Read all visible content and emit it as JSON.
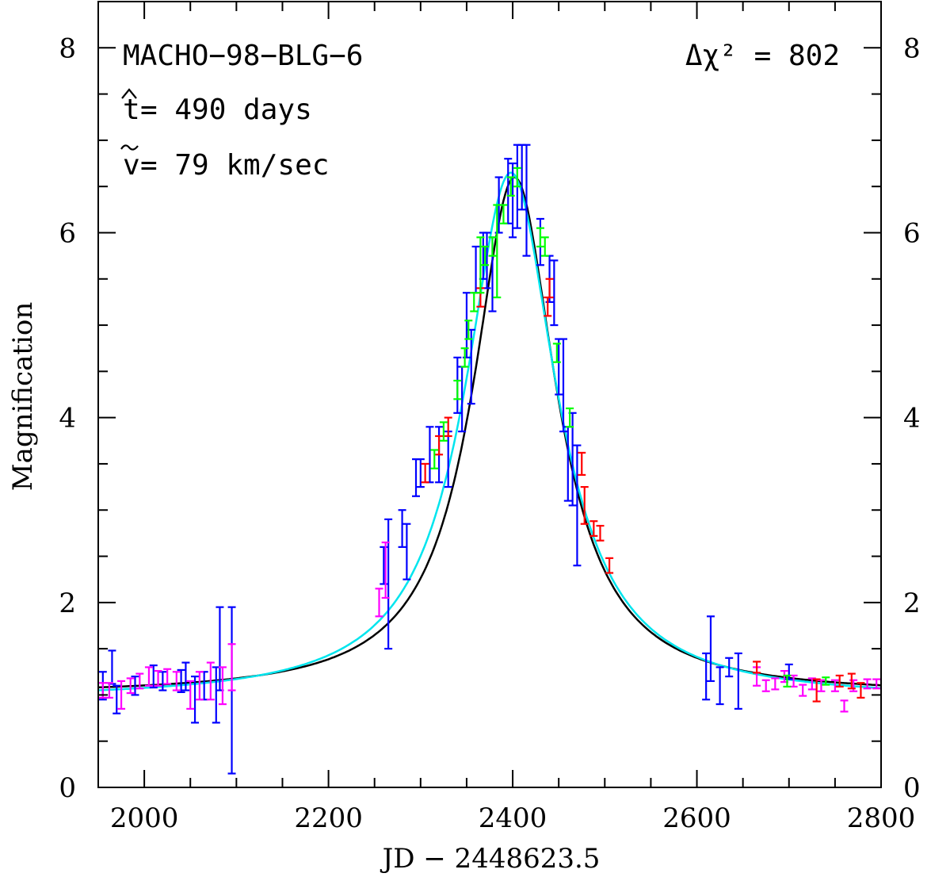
{
  "chart_data": {
    "type": "scatter",
    "xlabel": "JD − 2448623.5",
    "ylabel": "Magnification",
    "xlim": [
      1950,
      2800
    ],
    "ylim": [
      0,
      8.5
    ],
    "x_ticks": [
      2000,
      2200,
      2400,
      2600,
      2800
    ],
    "y_ticks": [
      0,
      2,
      4,
      6,
      8
    ],
    "annotations": {
      "event": "MACHO−98−BLG−6",
      "that_symbol": "t",
      "that_text": " = 490 days",
      "vtilde_symbol": "v",
      "vtilde_text": " = 79 km/sec",
      "delta_chi2": "Δχ² = 802"
    },
    "fits": [
      {
        "color": "#000000",
        "t0": 2402,
        "peak": 6.6,
        "width": 55,
        "base": 1.0
      },
      {
        "color": "#00e5ee",
        "t0": 2398,
        "peak": 6.65,
        "width": 60,
        "base": 0.95
      }
    ],
    "series": [
      {
        "color": "#0000ff",
        "points": [
          [
            1955,
            1.1,
            0.15
          ],
          [
            1965,
            1.3,
            0.18
          ],
          [
            1970,
            0.95,
            0.15
          ],
          [
            1990,
            1.1,
            0.1
          ],
          [
            2010,
            1.2,
            0.12
          ],
          [
            2020,
            1.15,
            0.1
          ],
          [
            2040,
            1.15,
            0.12
          ],
          [
            2045,
            1.2,
            0.15
          ],
          [
            2055,
            0.95,
            0.25
          ],
          [
            2065,
            1.1,
            0.15
          ],
          [
            2078,
            1.0,
            0.3
          ],
          [
            2082,
            1.5,
            0.45
          ],
          [
            2095,
            1.05,
            0.9
          ],
          [
            2260,
            2.4,
            0.2
          ],
          [
            2265,
            2.2,
            0.7
          ],
          [
            2280,
            2.8,
            0.2
          ],
          [
            2285,
            2.55,
            0.3
          ],
          [
            2295,
            3.35,
            0.2
          ],
          [
            2300,
            3.4,
            0.15
          ],
          [
            2310,
            3.6,
            0.3
          ],
          [
            2320,
            3.6,
            0.3
          ],
          [
            2330,
            3.55,
            0.3
          ],
          [
            2340,
            4.35,
            0.3
          ],
          [
            2345,
            4.2,
            0.35
          ],
          [
            2350,
            5.0,
            0.35
          ],
          [
            2355,
            4.55,
            0.4
          ],
          [
            2360,
            5.6,
            0.25
          ],
          [
            2368,
            5.75,
            0.25
          ],
          [
            2372,
            5.7,
            0.3
          ],
          [
            2378,
            5.55,
            0.4
          ],
          [
            2385,
            6.3,
            0.3
          ],
          [
            2395,
            6.45,
            0.35
          ],
          [
            2400,
            6.35,
            0.4
          ],
          [
            2405,
            6.5,
            0.45
          ],
          [
            2410,
            6.6,
            0.35
          ],
          [
            2415,
            6.35,
            0.6
          ],
          [
            2430,
            5.9,
            0.25
          ],
          [
            2440,
            5.5,
            0.25
          ],
          [
            2445,
            5.35,
            0.35
          ],
          [
            2450,
            4.55,
            0.3
          ],
          [
            2455,
            4.35,
            0.5
          ],
          [
            2460,
            3.5,
            0.4
          ],
          [
            2465,
            3.55,
            0.5
          ],
          [
            2470,
            3.05,
            0.65
          ],
          [
            2610,
            1.2,
            0.25
          ],
          [
            2615,
            1.5,
            0.35
          ],
          [
            2625,
            1.1,
            0.2
          ],
          [
            2635,
            1.3,
            0.1
          ],
          [
            2645,
            1.15,
            0.3
          ],
          [
            2700,
            1.25,
            0.08
          ]
        ]
      },
      {
        "color": "#ff00ff",
        "points": [
          [
            1955,
            1.05,
            0.08
          ],
          [
            1962,
            1.05,
            0.08
          ],
          [
            1975,
            1.0,
            0.15
          ],
          [
            1985,
            1.1,
            0.08
          ],
          [
            1995,
            1.15,
            0.08
          ],
          [
            2005,
            1.2,
            0.1
          ],
          [
            2015,
            1.18,
            0.08
          ],
          [
            2025,
            1.2,
            0.08
          ],
          [
            2035,
            1.15,
            0.1
          ],
          [
            2050,
            1.0,
            0.15
          ],
          [
            2060,
            1.1,
            0.15
          ],
          [
            2072,
            1.15,
            0.2
          ],
          [
            2085,
            1.1,
            0.2
          ],
          [
            2095,
            1.3,
            0.25
          ],
          [
            2255,
            2.0,
            0.15
          ],
          [
            2262,
            2.35,
            0.3
          ],
          [
            2665,
            1.2,
            0.1
          ],
          [
            2675,
            1.1,
            0.06
          ],
          [
            2685,
            1.12,
            0.06
          ],
          [
            2695,
            1.2,
            0.06
          ],
          [
            2705,
            1.15,
            0.06
          ],
          [
            2715,
            1.05,
            0.06
          ],
          [
            2725,
            1.12,
            0.06
          ],
          [
            2735,
            1.1,
            0.06
          ],
          [
            2750,
            1.1,
            0.06
          ],
          [
            2760,
            0.88,
            0.06
          ],
          [
            2770,
            1.1,
            0.06
          ],
          [
            2785,
            1.12,
            0.05
          ],
          [
            2795,
            1.12,
            0.05
          ]
        ]
      },
      {
        "color": "#ff0000",
        "points": [
          [
            2305,
            3.4,
            0.1
          ],
          [
            2320,
            3.7,
            0.1
          ],
          [
            2330,
            3.9,
            0.1
          ],
          [
            2365,
            5.3,
            0.1
          ],
          [
            2438,
            5.2,
            0.1
          ],
          [
            2440,
            5.4,
            0.1
          ],
          [
            2475,
            3.5,
            0.12
          ],
          [
            2478,
            3.05,
            0.2
          ],
          [
            2488,
            2.8,
            0.08
          ],
          [
            2495,
            2.75,
            0.08
          ],
          [
            2505,
            2.4,
            0.08
          ],
          [
            2665,
            1.3,
            0.06
          ],
          [
            2730,
            1.05,
            0.12
          ],
          [
            2755,
            1.15,
            0.06
          ],
          [
            2768,
            1.15,
            0.08
          ],
          [
            2778,
            1.05,
            0.08
          ]
        ]
      },
      {
        "color": "#00ff00",
        "points": [
          [
            2315,
            3.55,
            0.1
          ],
          [
            2325,
            3.85,
            0.1
          ],
          [
            2340,
            4.3,
            0.1
          ],
          [
            2348,
            4.65,
            0.1
          ],
          [
            2352,
            4.95,
            0.1
          ],
          [
            2358,
            5.25,
            0.1
          ],
          [
            2365,
            5.65,
            0.3
          ],
          [
            2370,
            5.75,
            0.1
          ],
          [
            2378,
            5.85,
            0.1
          ],
          [
            2383,
            5.8,
            0.5
          ],
          [
            2390,
            6.2,
            0.1
          ],
          [
            2398,
            6.5,
            0.1
          ],
          [
            2405,
            6.6,
            0.1
          ],
          [
            2430,
            5.95,
            0.1
          ],
          [
            2435,
            5.85,
            0.1
          ],
          [
            2448,
            4.7,
            0.1
          ],
          [
            2462,
            4.0,
            0.1
          ],
          [
            2698,
            1.15,
            0.06
          ],
          [
            2740,
            1.15,
            0.04
          ]
        ]
      }
    ]
  }
}
